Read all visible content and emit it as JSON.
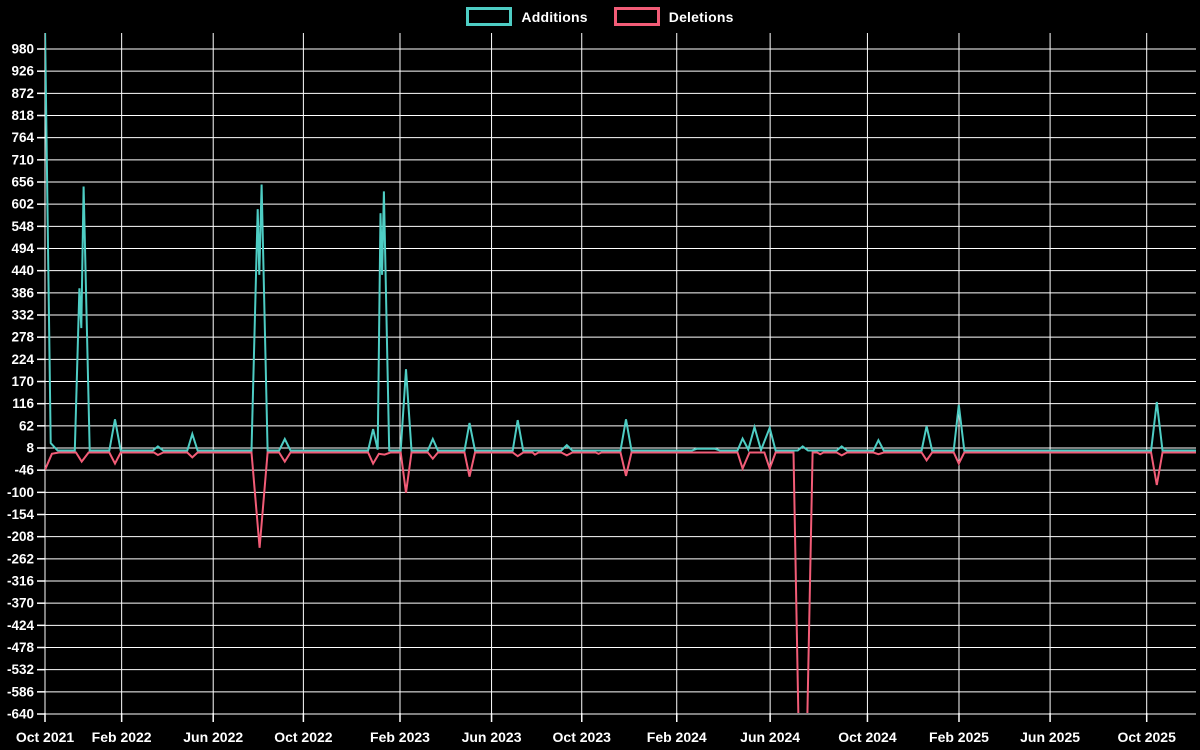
{
  "legend": {
    "items": [
      {
        "label": "Additions",
        "color": "#4ECDC4"
      },
      {
        "label": "Deletions",
        "color": "#F25C77"
      }
    ]
  },
  "chart_data": {
    "type": "line",
    "title": "",
    "background": "#000000",
    "grid": true,
    "grid_color": "#FFFFFF",
    "text_color": "#FFFFFF",
    "legend_position": "top-center",
    "x_axis": {
      "unit": "months since Oct 2021",
      "domain_months": [
        0,
        50.16
      ],
      "tick_labels": [
        "Oct 2021",
        "Feb 2022",
        "Jun 2022",
        "Oct 2022",
        "Feb 2023",
        "Jun 2023",
        "Oct 2023",
        "Feb 2024",
        "Jun 2024",
        "Oct 2024",
        "Feb 2025",
        "Jun 2025",
        "Oct 2025"
      ],
      "tick_positions_months": [
        0,
        3.34,
        7.33,
        11.26,
        15.47,
        19.46,
        23.39,
        27.53,
        31.6,
        35.84,
        39.83,
        43.8,
        48.01
      ]
    },
    "y_axis": {
      "domain": [
        -640,
        1014
      ],
      "tick_step": 54,
      "tick_values": [
        980,
        926,
        872,
        818,
        764,
        710,
        656,
        602,
        548,
        494,
        440,
        386,
        332,
        278,
        224,
        170,
        116,
        62,
        8,
        -46,
        -100,
        -154,
        -208,
        -262,
        -316,
        -370,
        -424,
        -478,
        -532,
        -586,
        -640
      ]
    },
    "series": [
      {
        "name": "Additions",
        "color": "#4ECDC4",
        "points": [
          [
            0,
            1035
          ],
          [
            0.25,
            20
          ],
          [
            0.55,
            2
          ],
          [
            1.3,
            2
          ],
          [
            1.5,
            397
          ],
          [
            1.58,
            300
          ],
          [
            1.68,
            645
          ],
          [
            1.95,
            2
          ],
          [
            2.8,
            2
          ],
          [
            3.05,
            78
          ],
          [
            3.3,
            2
          ],
          [
            4.7,
            2
          ],
          [
            4.92,
            12
          ],
          [
            5.15,
            2
          ],
          [
            6.2,
            2
          ],
          [
            6.42,
            42
          ],
          [
            6.65,
            2
          ],
          [
            9.0,
            2
          ],
          [
            9.27,
            590
          ],
          [
            9.34,
            430
          ],
          [
            9.44,
            650
          ],
          [
            9.7,
            2
          ],
          [
            10.2,
            2
          ],
          [
            10.45,
            30
          ],
          [
            10.7,
            2
          ],
          [
            14.08,
            2
          ],
          [
            14.3,
            54
          ],
          [
            14.5,
            4
          ],
          [
            14.62,
            580
          ],
          [
            14.69,
            430
          ],
          [
            14.77,
            633
          ],
          [
            15.0,
            2
          ],
          [
            15.5,
            2
          ],
          [
            15.73,
            200
          ],
          [
            15.97,
            2
          ],
          [
            16.68,
            2
          ],
          [
            16.9,
            30
          ],
          [
            17.12,
            2
          ],
          [
            18.28,
            2
          ],
          [
            18.5,
            69
          ],
          [
            18.74,
            2
          ],
          [
            20.38,
            2
          ],
          [
            20.6,
            76
          ],
          [
            20.84,
            2
          ],
          [
            22.5,
            2
          ],
          [
            22.74,
            15
          ],
          [
            22.98,
            2
          ],
          [
            25.08,
            2
          ],
          [
            25.32,
            78
          ],
          [
            25.56,
            2
          ],
          [
            28.2,
            2
          ],
          [
            28.4,
            6
          ],
          [
            29.2,
            6
          ],
          [
            29.4,
            2
          ],
          [
            30.18,
            2
          ],
          [
            30.4,
            31
          ],
          [
            30.65,
            4
          ],
          [
            30.92,
            59
          ],
          [
            31.2,
            3
          ],
          [
            31.58,
            57
          ],
          [
            31.84,
            2
          ],
          [
            32.8,
            2
          ],
          [
            33.02,
            12
          ],
          [
            33.25,
            2
          ],
          [
            34.5,
            2
          ],
          [
            34.72,
            12
          ],
          [
            34.95,
            2
          ],
          [
            36.1,
            2
          ],
          [
            36.32,
            27
          ],
          [
            36.55,
            2
          ],
          [
            38.2,
            2
          ],
          [
            38.42,
            61
          ],
          [
            38.66,
            2
          ],
          [
            39.6,
            2
          ],
          [
            39.82,
            113
          ],
          [
            40.06,
            2
          ],
          [
            48.2,
            2
          ],
          [
            48.45,
            120
          ],
          [
            48.7,
            2
          ],
          [
            50.16,
            2
          ]
        ]
      },
      {
        "name": "Deletions",
        "color": "#F25C77",
        "points": [
          [
            0,
            -45
          ],
          [
            0.3,
            -6
          ],
          [
            0.6,
            -3
          ],
          [
            1.35,
            -3
          ],
          [
            1.6,
            -25
          ],
          [
            1.9,
            -3
          ],
          [
            2.8,
            -3
          ],
          [
            3.05,
            -30
          ],
          [
            3.3,
            -3
          ],
          [
            4.75,
            -3
          ],
          [
            4.92,
            -9
          ],
          [
            5.15,
            -3
          ],
          [
            6.2,
            -3
          ],
          [
            6.42,
            -15
          ],
          [
            6.65,
            -3
          ],
          [
            9.0,
            -3
          ],
          [
            9.35,
            -235
          ],
          [
            9.7,
            -3
          ],
          [
            10.2,
            -3
          ],
          [
            10.45,
            -25
          ],
          [
            10.7,
            -3
          ],
          [
            14.08,
            -3
          ],
          [
            14.3,
            -30
          ],
          [
            14.55,
            -6
          ],
          [
            14.8,
            -8
          ],
          [
            15.05,
            -3
          ],
          [
            15.5,
            -3
          ],
          [
            15.73,
            -101
          ],
          [
            15.97,
            -3
          ],
          [
            16.68,
            -3
          ],
          [
            16.9,
            -18
          ],
          [
            17.12,
            -3
          ],
          [
            18.28,
            -3
          ],
          [
            18.5,
            -62
          ],
          [
            18.74,
            -3
          ],
          [
            20.38,
            -3
          ],
          [
            20.6,
            -12
          ],
          [
            20.84,
            -3
          ],
          [
            21.25,
            -3
          ],
          [
            21.35,
            -8
          ],
          [
            21.5,
            -3
          ],
          [
            22.5,
            -3
          ],
          [
            22.74,
            -10
          ],
          [
            22.98,
            -3
          ],
          [
            24.0,
            -3
          ],
          [
            24.12,
            -6
          ],
          [
            24.25,
            -3
          ],
          [
            25.08,
            -3
          ],
          [
            25.32,
            -60
          ],
          [
            25.56,
            -3
          ],
          [
            30.18,
            -3
          ],
          [
            30.4,
            -42
          ],
          [
            30.7,
            -3
          ],
          [
            31.35,
            -3
          ],
          [
            31.58,
            -42
          ],
          [
            31.84,
            -3
          ],
          [
            32.62,
            -3
          ],
          [
            32.85,
            -700
          ],
          [
            33.2,
            -700
          ],
          [
            33.45,
            -3
          ],
          [
            33.65,
            -3
          ],
          [
            33.78,
            -7
          ],
          [
            33.92,
            -3
          ],
          [
            34.5,
            -3
          ],
          [
            34.72,
            -10
          ],
          [
            34.95,
            -3
          ],
          [
            36.1,
            -3
          ],
          [
            36.32,
            -7
          ],
          [
            36.55,
            -3
          ],
          [
            38.2,
            -3
          ],
          [
            38.42,
            -22
          ],
          [
            38.66,
            -3
          ],
          [
            39.6,
            -3
          ],
          [
            39.82,
            -30
          ],
          [
            40.06,
            -3
          ],
          [
            48.2,
            -3
          ],
          [
            48.45,
            -82
          ],
          [
            48.7,
            -3
          ],
          [
            50.16,
            -3
          ]
        ]
      }
    ]
  }
}
